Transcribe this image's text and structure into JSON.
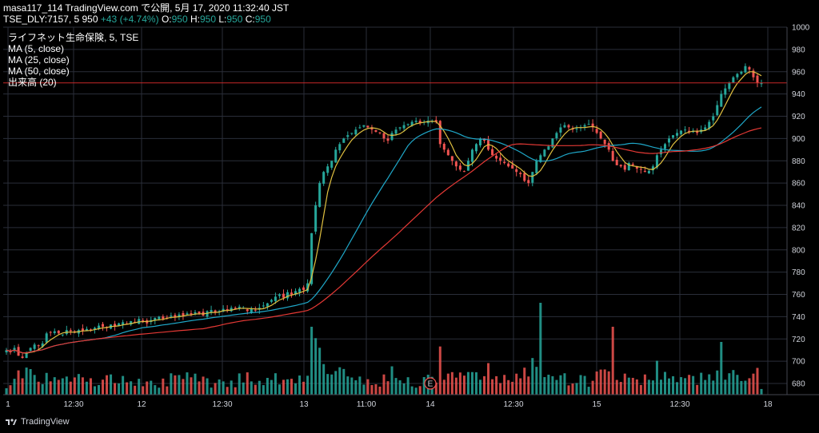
{
  "header": {
    "line1": "masa117_114 TradingView.com で公開, 5月 17, 2020 11:32:40 JST",
    "line2_prefix": "TSE_DLY:7157, 5 950",
    "change": "+43 (+4.74%)",
    "o_label": "O:",
    "o_val": "950",
    "h_label": "H:",
    "h_val": "950",
    "l_label": "L:",
    "l_val": "950",
    "c_label": "C:",
    "c_val": "950"
  },
  "legend": {
    "title": "ライフネット生命保険, 5, TSE",
    "ma5": "MA (5, close)",
    "ma25": "MA (25, close)",
    "ma50": "MA (50, close)",
    "volume": "出来高 (20)"
  },
  "footer": {
    "brand": "TradingView"
  },
  "colors": {
    "up": "#26a69a",
    "down": "#ef5350",
    "ma5": "#e0c040",
    "ma25": "#1fa8c9",
    "ma50": "#e53935",
    "grid": "#2a2e39",
    "price_line": "#c62828",
    "price_label_bg": "#ef5350"
  },
  "chart_data": {
    "type": "candlestick",
    "symbol": "TSE_DLY:7157",
    "interval": "5",
    "last_price": "950",
    "ylim": [
      670,
      1000
    ],
    "y_ticks": [
      "680",
      "700",
      "720",
      "740",
      "760",
      "780",
      "800",
      "820",
      "840",
      "860",
      "880",
      "900",
      "920",
      "940",
      "960",
      "980",
      "1000"
    ],
    "x_ticks": [
      "1",
      "12:30",
      "12",
      "12:30",
      "13",
      "11:00",
      "14",
      "12:30",
      "15",
      "12:30",
      "18"
    ],
    "ma_series": [
      {
        "name": "MA (5, close)"
      },
      {
        "name": "MA (25, close)"
      },
      {
        "name": "MA (50, close)"
      }
    ],
    "closes": [
      710,
      708,
      712,
      705,
      703,
      708,
      712,
      715,
      714,
      716,
      725,
      726,
      727,
      725,
      724,
      728,
      727,
      726,
      728,
      727,
      729,
      728,
      730,
      732,
      731,
      730,
      733,
      731,
      734,
      735,
      733,
      736,
      735,
      738,
      736,
      734,
      737,
      739,
      740,
      738,
      739,
      741,
      740,
      742,
      741,
      743,
      742,
      744,
      743,
      741,
      745,
      746,
      744,
      745,
      747,
      746,
      748,
      747,
      749,
      748,
      745,
      747,
      746,
      748,
      750,
      752,
      755,
      758,
      760,
      757,
      762,
      760,
      763,
      765,
      764,
      770,
      815,
      840,
      860,
      870,
      875,
      880,
      890,
      895,
      900,
      903,
      905,
      908,
      910,
      912,
      910,
      908,
      906,
      905,
      900,
      898,
      905,
      908,
      910,
      912,
      913,
      915,
      916,
      914,
      915,
      916,
      916,
      915,
      895,
      890,
      885,
      880,
      875,
      872,
      870,
      880,
      890,
      895,
      900,
      898,
      890,
      885,
      882,
      880,
      878,
      875,
      873,
      870,
      868,
      862,
      860,
      870,
      880,
      885,
      890,
      893,
      900,
      905,
      910,
      912,
      910,
      908,
      909,
      910,
      912,
      913,
      910,
      905,
      900,
      895,
      890,
      880,
      876,
      875,
      872,
      878,
      876,
      873,
      872,
      870,
      871,
      875,
      885,
      890,
      895,
      900,
      903,
      905,
      907,
      908,
      906,
      907,
      905,
      908,
      910,
      915,
      920,
      930,
      940,
      945,
      950,
      955,
      958,
      960,
      965,
      962,
      955,
      950,
      950
    ],
    "candle_dir": "derived from close-to-close changes",
    "volumes_note": "volume bars scaled to max"
  }
}
